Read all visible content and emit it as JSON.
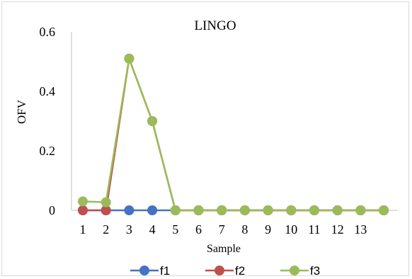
{
  "chart_data": {
    "type": "line",
    "title": "LINGO",
    "xlabel": "Sample",
    "ylabel": "OFV",
    "x": [
      1,
      2,
      3,
      4,
      5,
      6,
      7,
      8,
      9,
      10,
      11,
      12,
      13,
      14
    ],
    "x_tick_labels": [
      "1",
      "2",
      "3",
      "4",
      "5",
      "6",
      "7",
      "8",
      "9",
      "10",
      "11",
      "12",
      "13"
    ],
    "y_ticks": [
      "0",
      "0.2",
      "0.4",
      "0.6"
    ],
    "ylim": [
      0,
      0.6
    ],
    "grid": false,
    "legend_position": "bottom",
    "series": [
      {
        "name": "f1",
        "color": "#4472C4",
        "values": [
          0,
          0,
          0,
          0,
          0,
          0,
          0,
          0,
          0,
          0,
          0,
          0,
          0,
          0
        ]
      },
      {
        "name": "f2",
        "color": "#C0504D",
        "values": [
          0,
          0,
          0.51,
          0.3,
          0,
          0,
          0,
          0,
          0,
          0,
          0,
          0,
          0,
          0
        ]
      },
      {
        "name": "f3",
        "color": "#9BBB59",
        "values": [
          0.03,
          0.027,
          0.51,
          0.3,
          0,
          0,
          0,
          0,
          0,
          0,
          0,
          0,
          0,
          0
        ]
      }
    ]
  }
}
